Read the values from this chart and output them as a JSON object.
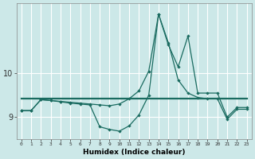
{
  "xlabel": "Humidex (Indice chaleur)",
  "background_color": "#cce8e8",
  "line_color": "#1a6b60",
  "grid_color": "#ffffff",
  "x_ticks": [
    0,
    1,
    2,
    3,
    4,
    5,
    6,
    7,
    8,
    9,
    10,
    11,
    12,
    13,
    14,
    15,
    16,
    17,
    18,
    19,
    20,
    21,
    22,
    23
  ],
  "y_ticks": [
    9,
    10
  ],
  "ylim": [
    8.5,
    11.6
  ],
  "xlim": [
    -0.5,
    23.5
  ],
  "line1_x": [
    0,
    1,
    2,
    3,
    4,
    5,
    6,
    7,
    8,
    9,
    10,
    11,
    12,
    13,
    14,
    15,
    16,
    17,
    18,
    19,
    20,
    21,
    22,
    23
  ],
  "line1_y": [
    9.15,
    9.15,
    9.4,
    9.38,
    9.35,
    9.32,
    9.3,
    9.28,
    8.78,
    8.72,
    8.68,
    8.8,
    9.05,
    9.5,
    11.35,
    10.7,
    9.85,
    9.55,
    9.45,
    9.42,
    9.42,
    8.95,
    9.18,
    9.18
  ],
  "line2_x": [
    0,
    23
  ],
  "line2_y": [
    9.42,
    9.42
  ],
  "line3_x": [
    0,
    1,
    2,
    3,
    4,
    5,
    6,
    7,
    8,
    9,
    10,
    11,
    12,
    13,
    14,
    15,
    16,
    17,
    18,
    19,
    20,
    21,
    22,
    23
  ],
  "line3_y": [
    9.15,
    9.15,
    9.4,
    9.38,
    9.36,
    9.34,
    9.32,
    9.3,
    9.28,
    9.26,
    9.3,
    9.42,
    9.6,
    10.05,
    11.35,
    10.65,
    10.15,
    10.85,
    9.55,
    9.55,
    9.55,
    9.0,
    9.22,
    9.22
  ]
}
